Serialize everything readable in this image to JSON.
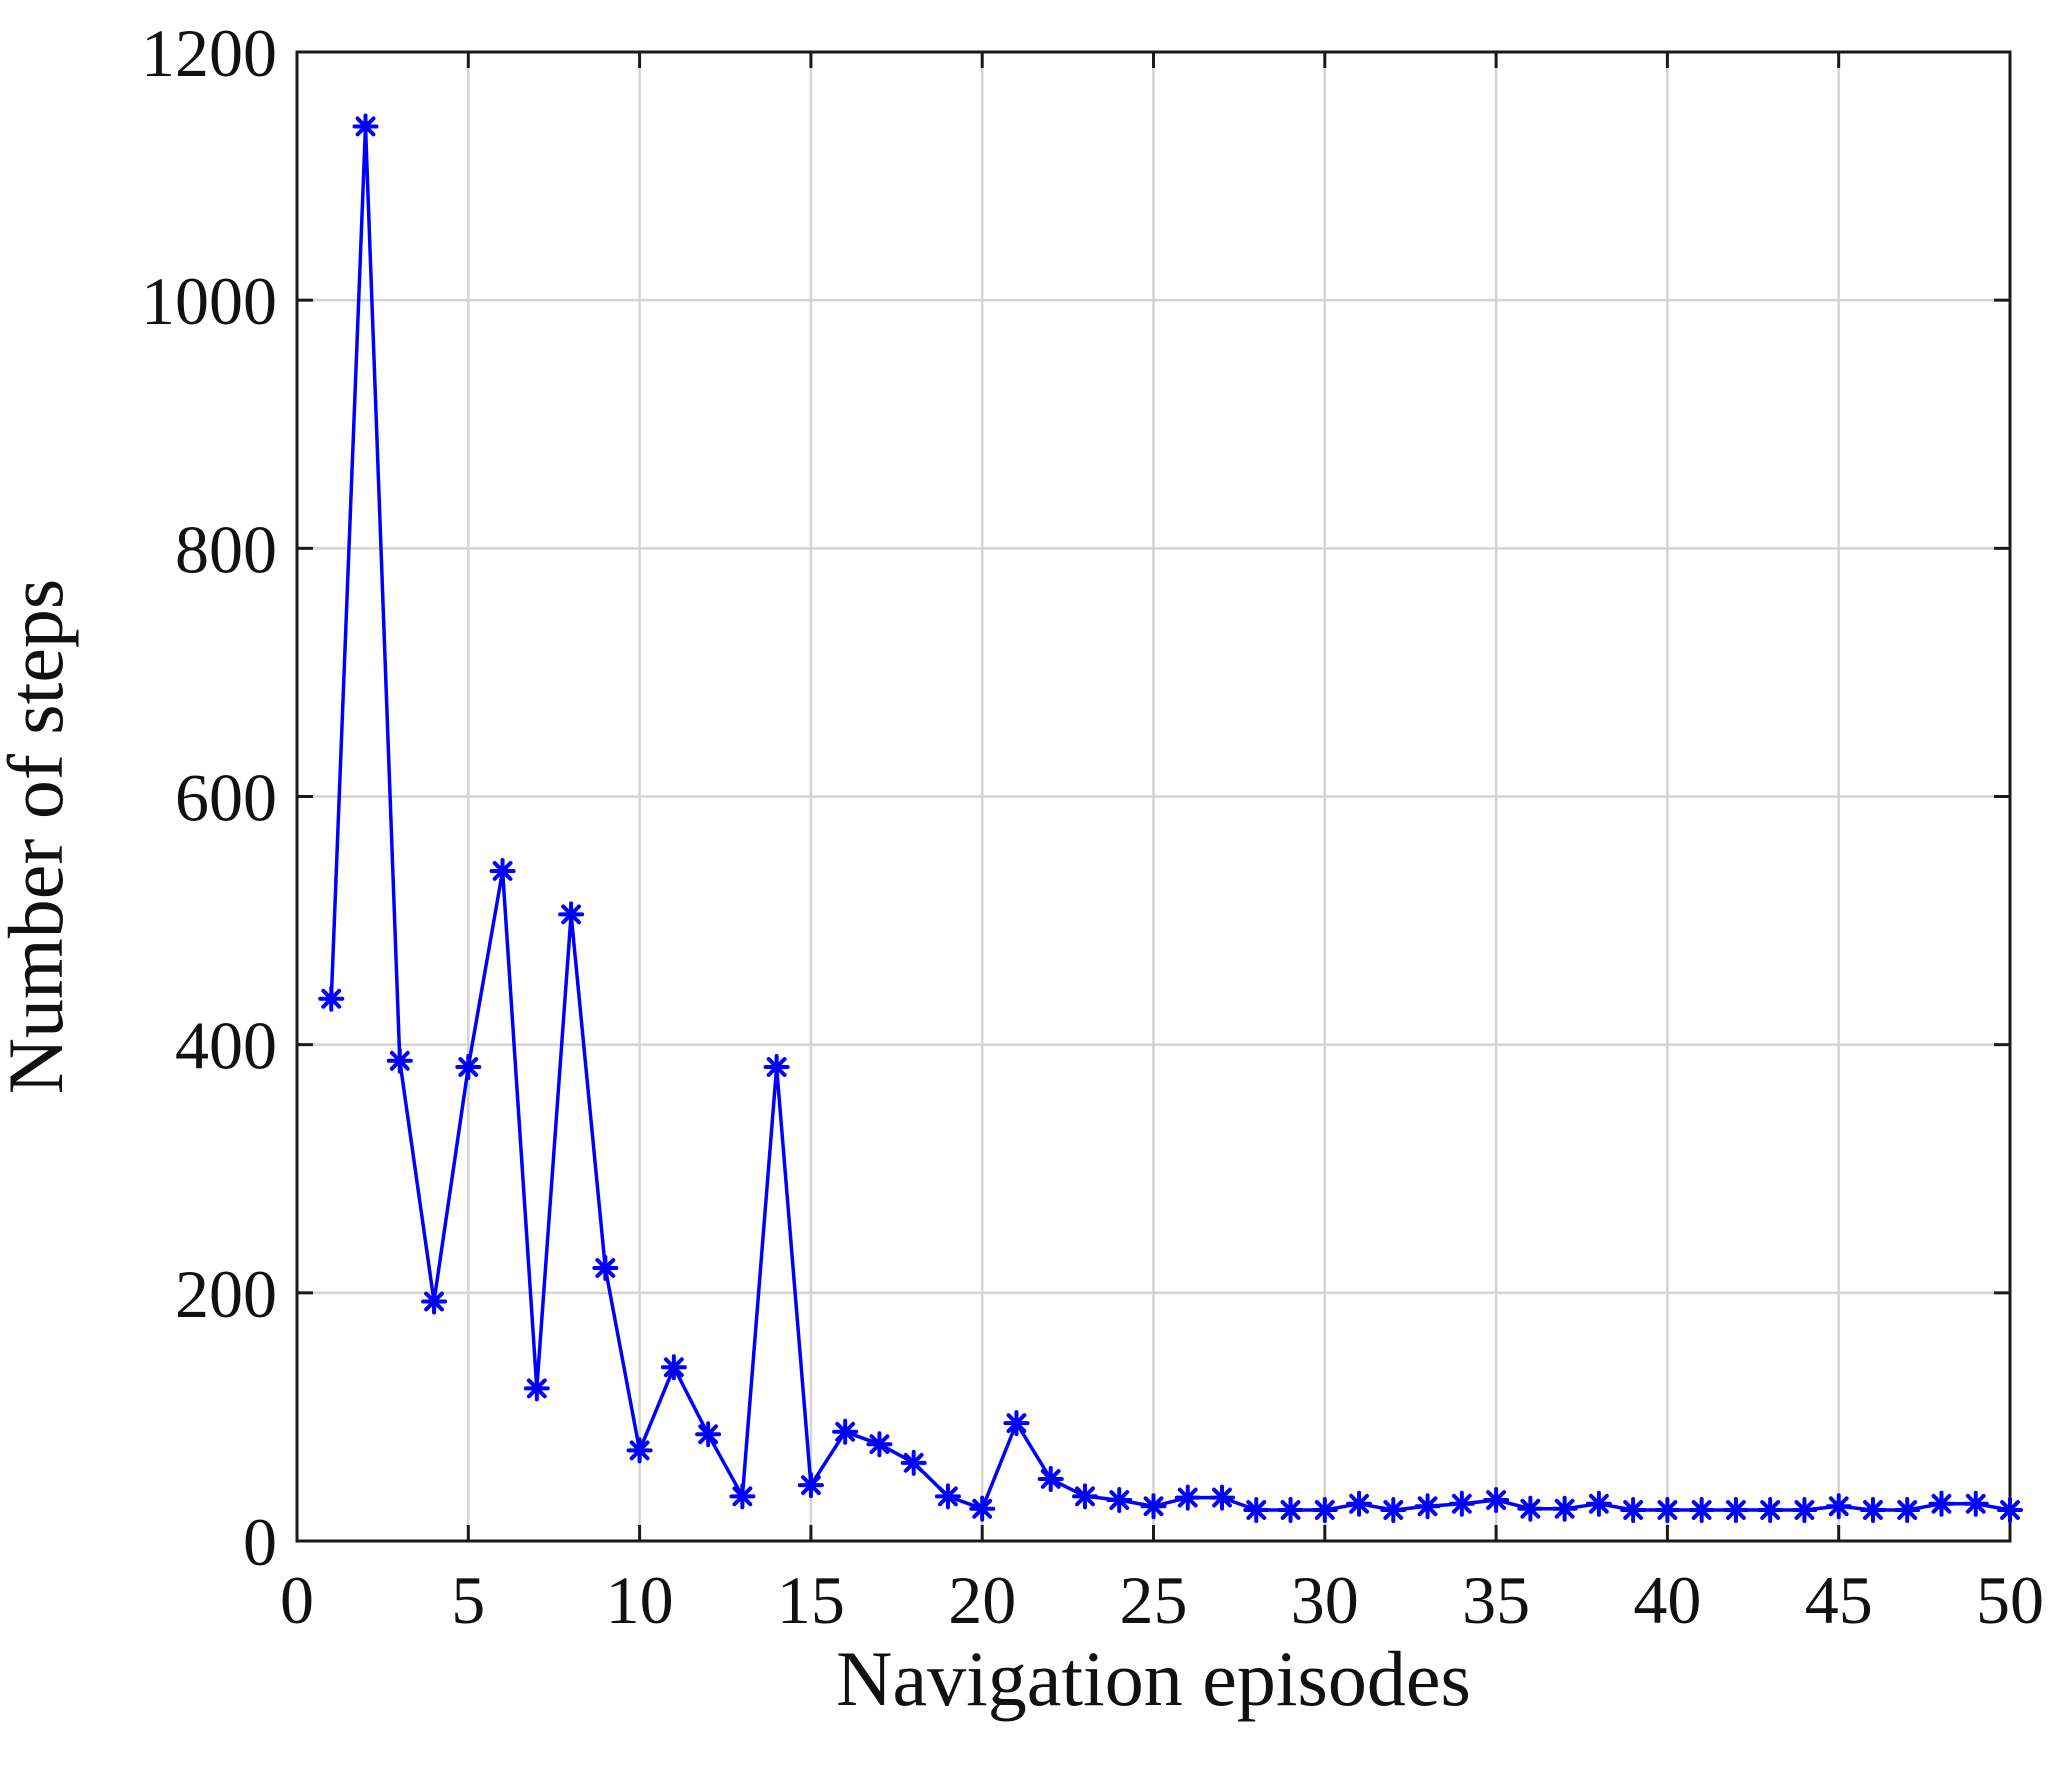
{
  "chart_data": {
    "type": "line",
    "title": "",
    "xlabel": "Navigation episodes",
    "ylabel": "Number of steps",
    "xlim": [
      0,
      50
    ],
    "ylim": [
      0,
      1200
    ],
    "xticks": [
      0,
      5,
      10,
      15,
      20,
      25,
      30,
      35,
      40,
      45,
      50
    ],
    "yticks": [
      0,
      200,
      400,
      600,
      800,
      1000,
      1200
    ],
    "grid": true,
    "legend": "none",
    "series": [
      {
        "color": "#0000ff",
        "marker": "asterisk",
        "x": [
          1,
          2,
          3,
          4,
          5,
          6,
          7,
          8,
          9,
          10,
          11,
          12,
          13,
          14,
          15,
          16,
          17,
          18,
          19,
          20,
          21,
          22,
          23,
          24,
          25,
          26,
          27,
          28,
          29,
          30,
          31,
          32,
          33,
          34,
          35,
          36,
          37,
          38,
          39,
          40,
          41,
          42,
          43,
          44,
          45,
          46,
          47,
          48,
          49,
          50
        ],
        "values": [
          437,
          1140,
          387,
          193,
          382,
          540,
          123,
          505,
          220,
          73,
          140,
          86,
          36,
          382,
          45,
          88,
          78,
          63,
          36,
          26,
          95,
          50,
          36,
          33,
          28,
          35,
          35,
          25,
          25,
          25,
          30,
          25,
          28,
          30,
          33,
          26,
          26,
          30,
          25,
          25,
          25,
          25,
          25,
          25,
          28,
          25,
          25,
          30,
          30,
          25
        ]
      }
    ]
  }
}
